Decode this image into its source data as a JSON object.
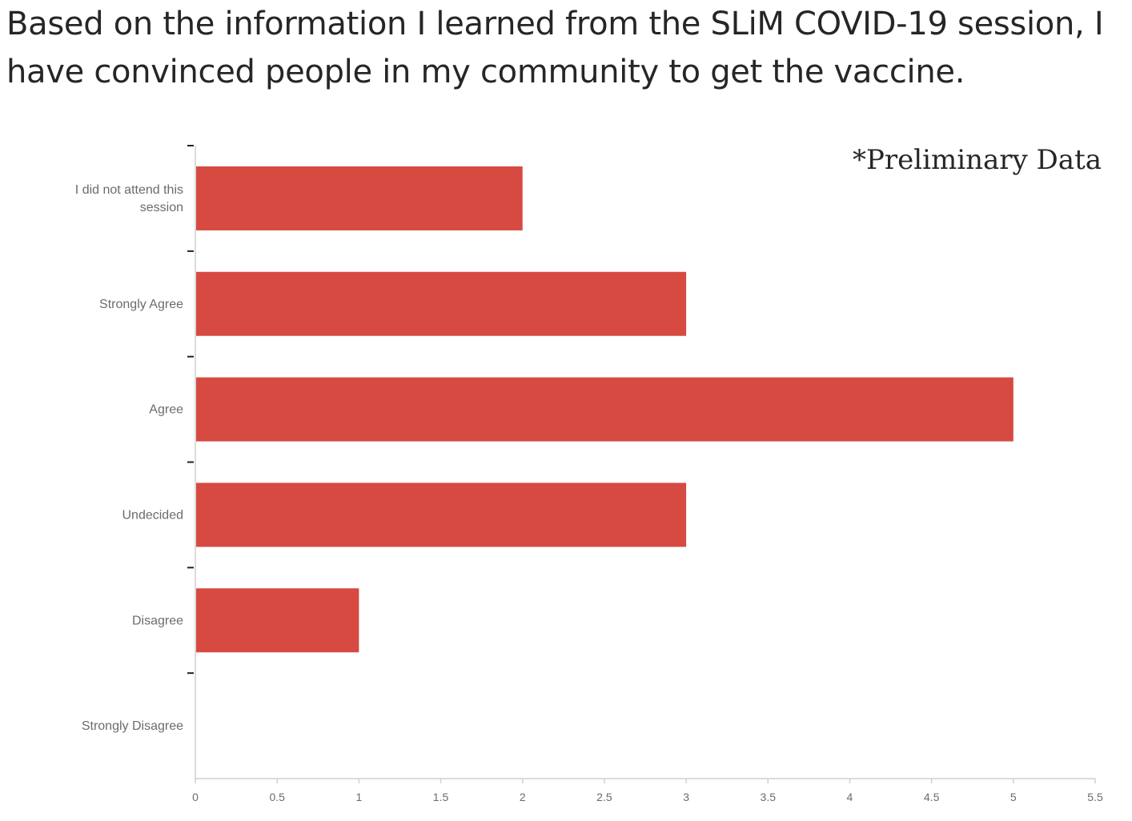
{
  "title_lines": [
    "Based on the information I learned from the SLiM COVID-19 session, I",
    "have convinced people in my community to get the vaccine."
  ],
  "annotation": "*Preliminary Data",
  "colors": {
    "bar": "#d64a42",
    "axis": "#cfcfcf",
    "tick": "#222222",
    "text": "#262626"
  },
  "chart_data": {
    "type": "bar",
    "orientation": "horizontal",
    "categories": [
      [
        "I did not attend this",
        "session"
      ],
      [
        "Strongly Agree"
      ],
      [
        "Agree"
      ],
      [
        "Undecided"
      ],
      [
        "Disagree"
      ],
      [
        "Strongly Disagree"
      ]
    ],
    "values": [
      2,
      3,
      5,
      3,
      1,
      0
    ],
    "xlim": [
      0,
      5.5
    ],
    "xticks": [
      "0",
      "0.5",
      "1",
      "1.5",
      "2",
      "2.5",
      "3",
      "3.5",
      "4",
      "4.5",
      "5",
      "5.5"
    ],
    "grid": false
  }
}
